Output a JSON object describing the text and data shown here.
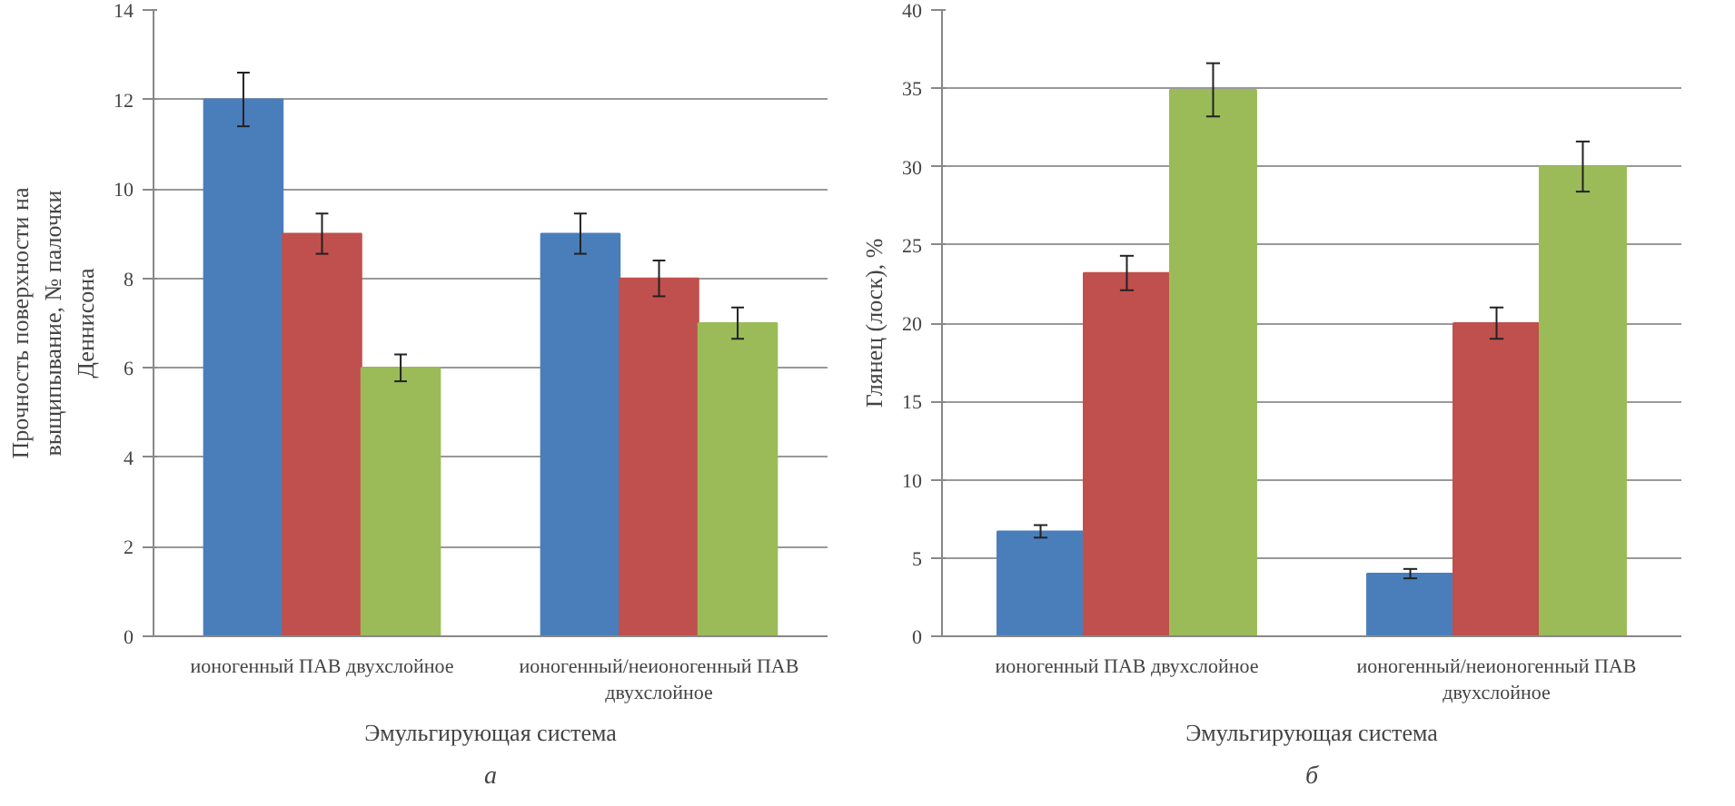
{
  "chart_data": [
    {
      "type": "bar",
      "ylabel": "Прочность поверхности на выщипывание, № палочки Деннисона",
      "xlabel": "Эмульгирующая система",
      "annotations": [
        "а"
      ],
      "categories": [
        "ионогенный ПАВ двухслойное",
        "ионогенный/неионогенный ПАВ двухслойное"
      ],
      "ylim": [
        0,
        14
      ],
      "yticks": [
        0,
        2,
        4,
        6,
        8,
        10,
        12,
        14
      ],
      "grid": "y",
      "series": [
        {
          "color": "#4a7ebb",
          "values": [
            12,
            9
          ],
          "errors": [
            0.6,
            0.45
          ]
        },
        {
          "color": "#c0504d",
          "values": [
            9,
            8
          ],
          "errors": [
            0.45,
            0.4
          ]
        },
        {
          "color": "#9bbb59",
          "values": [
            6,
            7
          ],
          "errors": [
            0.3,
            0.35
          ]
        }
      ]
    },
    {
      "type": "bar",
      "ylabel": "Глянец (лоск), %",
      "xlabel": "Эмульгирующая система",
      "annotations": [
        "б"
      ],
      "categories": [
        "ионогенный ПАВ двухслойное",
        "ионогенный/неионогенный ПАВ двухслойное"
      ],
      "ylim": [
        0,
        40
      ],
      "yticks": [
        0,
        5,
        10,
        15,
        20,
        25,
        30,
        35,
        40
      ],
      "grid": "y",
      "series": [
        {
          "color": "#4a7ebb",
          "values": [
            6.7,
            4
          ],
          "errors": [
            0.4,
            0.3
          ]
        },
        {
          "color": "#c0504d",
          "values": [
            23.2,
            20
          ],
          "errors": [
            1.1,
            1.0
          ]
        },
        {
          "color": "#9bbb59",
          "values": [
            34.9,
            30
          ],
          "errors": [
            1.7,
            1.6
          ]
        }
      ]
    }
  ]
}
